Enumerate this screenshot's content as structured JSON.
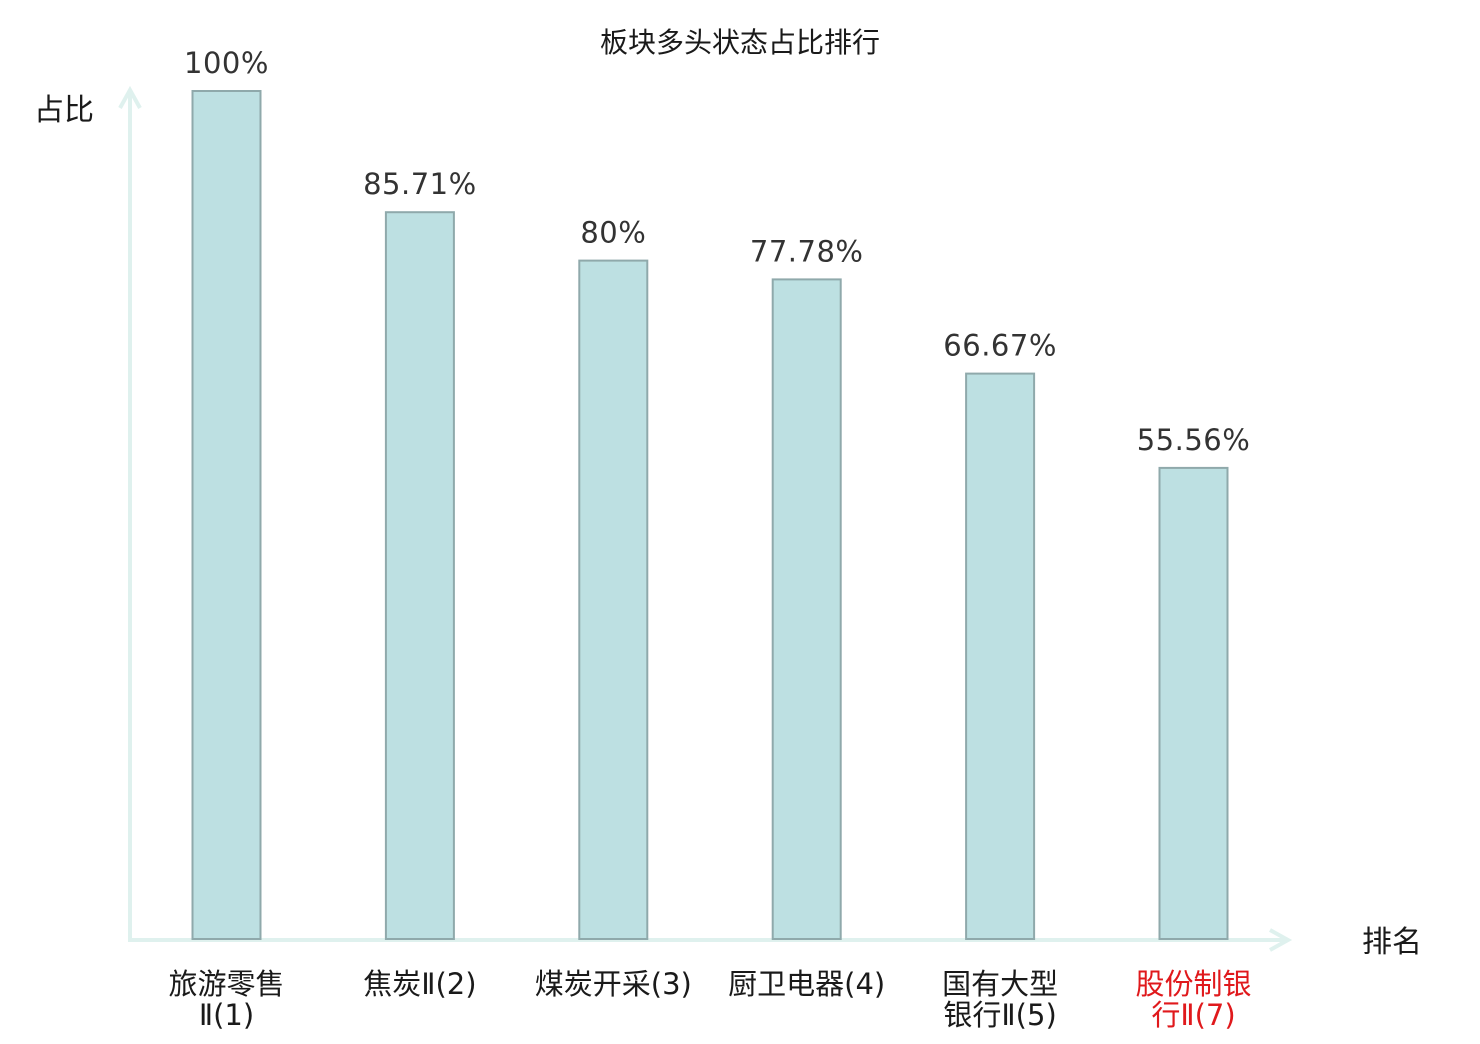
{
  "chart_data": {
    "type": "bar",
    "title": "板块多头状态占比排行",
    "ylabel": "占比",
    "xlabel": "排名",
    "ylim": [
      0,
      100
    ],
    "grid": false,
    "categories": [
      [
        "旅游零售",
        "Ⅱ(1)"
      ],
      [
        "焦炭Ⅱ(2)"
      ],
      [
        "煤炭开采(3)"
      ],
      [
        "厨卫电器(4)"
      ],
      [
        "国有大型",
        "银行Ⅱ(5)"
      ],
      [
        "股份制银",
        "行Ⅱ(7)"
      ]
    ],
    "values": [
      100,
      85.71,
      80,
      77.78,
      66.67,
      55.56
    ],
    "value_labels": [
      "100%",
      "85.71%",
      "80%",
      "77.78%",
      "66.67%",
      "55.56%"
    ],
    "highlighted_category_index": 5,
    "colors": {
      "bar_fill": "#bde0e2",
      "bar_stroke": "#8fa9ab",
      "axis": "#dff1ee",
      "text": "#1a1a1a",
      "value_text": "#333333",
      "highlight_text": "#e0191c"
    }
  }
}
